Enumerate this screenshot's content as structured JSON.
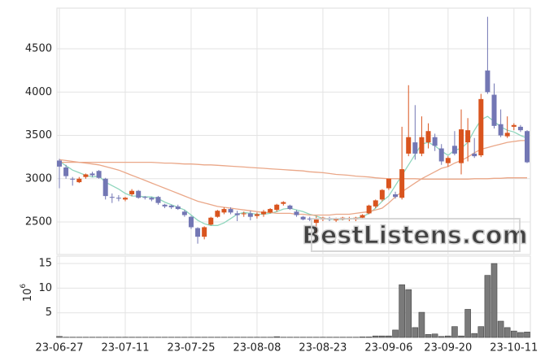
{
  "chart_data": [
    {
      "type": "candlestick",
      "open": [
        3210,
        3130,
        3000,
        2960,
        3020,
        3060,
        3090,
        3000,
        2790,
        2780,
        2760,
        2820,
        2860,
        2790,
        2780,
        2790,
        2700,
        2690,
        2680,
        2620,
        2560,
        2430,
        2330,
        2470,
        2560,
        2610,
        2650,
        2600,
        2590,
        2600,
        2570,
        2590,
        2610,
        2640,
        2710,
        2690,
        2620,
        2560,
        2540,
        2490,
        2530,
        2540,
        2520,
        2530,
        2540,
        2530,
        2550,
        2600,
        2680,
        2760,
        2890,
        2820,
        2780,
        3290,
        3420,
        3290,
        3420,
        3480,
        3350,
        3180,
        3380,
        3180,
        3420,
        3290,
        3270,
        4250,
        3970,
        3630,
        3490,
        3600,
        3600,
        3550
      ],
      "high": [
        3230,
        3160,
        3020,
        3020,
        3060,
        3080,
        3100,
        3010,
        2830,
        2810,
        2790,
        2880,
        2870,
        2800,
        2790,
        2800,
        2710,
        2700,
        2700,
        2640,
        2570,
        2440,
        2450,
        2560,
        2640,
        2670,
        2670,
        2630,
        2620,
        2630,
        2610,
        2640,
        2660,
        2710,
        2740,
        2700,
        2640,
        2570,
        2560,
        2570,
        2560,
        2560,
        2550,
        2560,
        2560,
        2560,
        2590,
        2700,
        2760,
        2880,
        3000,
        2850,
        3600,
        4080,
        3850,
        3720,
        3640,
        3520,
        3400,
        3260,
        3550,
        3800,
        3700,
        3470,
        3980,
        4870,
        4100,
        3800,
        3720,
        3640,
        3620,
        3560
      ],
      "low": [
        2890,
        3000,
        2920,
        2950,
        3000,
        3020,
        3000,
        2760,
        2720,
        2740,
        2740,
        2800,
        2770,
        2760,
        2740,
        2700,
        2660,
        2650,
        2640,
        2560,
        2420,
        2250,
        2300,
        2460,
        2550,
        2590,
        2590,
        2510,
        2560,
        2520,
        2540,
        2560,
        2600,
        2620,
        2690,
        2640,
        2560,
        2520,
        2510,
        2360,
        2510,
        2510,
        2500,
        2520,
        2510,
        2510,
        2540,
        2590,
        2660,
        2740,
        2870,
        2770,
        2760,
        3260,
        3220,
        3260,
        3350,
        3320,
        3160,
        3140,
        3270,
        3050,
        3200,
        3240,
        3250,
        3980,
        3580,
        3480,
        3470,
        3560,
        3540,
        3180
      ],
      "close": [
        3140,
        3030,
        2990,
        3000,
        3050,
        3040,
        3010,
        2800,
        2780,
        2770,
        2780,
        2860,
        2780,
        2780,
        2760,
        2720,
        2680,
        2670,
        2650,
        2580,
        2440,
        2330,
        2440,
        2550,
        2630,
        2650,
        2610,
        2580,
        2600,
        2560,
        2590,
        2620,
        2650,
        2700,
        2730,
        2650,
        2580,
        2530,
        2530,
        2530,
        2550,
        2530,
        2540,
        2550,
        2540,
        2550,
        2580,
        2690,
        2750,
        2870,
        3000,
        2790,
        3110,
        3480,
        3290,
        3480,
        3550,
        3380,
        3200,
        3240,
        3290,
        3570,
        3560,
        3260,
        3920,
        4000,
        3610,
        3500,
        3530,
        3620,
        3560,
        3190
      ],
      "up_color": "#d9541e",
      "down_color": "#7377b4",
      "lines": [
        {
          "color": "#8fd6bd",
          "values": [
            3200,
            3150,
            3100,
            3070,
            3040,
            3020,
            3030,
            2960,
            2920,
            2880,
            2830,
            2800,
            2800,
            2790,
            2790,
            2770,
            2730,
            2700,
            2670,
            2640,
            2580,
            2520,
            2480,
            2460,
            2460,
            2490,
            2540,
            2590,
            2610,
            2600,
            2590,
            2590,
            2600,
            2620,
            2650,
            2660,
            2640,
            2620,
            2590,
            2570,
            2540,
            2530,
            2530,
            2530,
            2540,
            2540,
            2560,
            2600,
            2660,
            2740,
            2800,
            2920,
            3040,
            3160,
            3280,
            3400,
            3420,
            3380,
            3320,
            3270,
            3330,
            3350,
            3420,
            3560,
            3680,
            3720,
            3660,
            3600,
            3560,
            3540,
            3500,
            3470
          ]
        },
        {
          "color": "#eaa788",
          "values": [
            3220,
            3210,
            3200,
            3190,
            3180,
            3170,
            3160,
            3140,
            3120,
            3100,
            3070,
            3040,
            3010,
            2980,
            2950,
            2920,
            2890,
            2860,
            2830,
            2800,
            2770,
            2740,
            2720,
            2700,
            2680,
            2670,
            2660,
            2650,
            2640,
            2630,
            2620,
            2610,
            2610,
            2600,
            2600,
            2600,
            2590,
            2590,
            2580,
            2580,
            2580,
            2580,
            2590,
            2590,
            2590,
            2600,
            2610,
            2620,
            2640,
            2660,
            2720,
            2790,
            2850,
            2900,
            2950,
            3000,
            3040,
            3080,
            3120,
            3140,
            3180,
            3210,
            3250,
            3300,
            3340,
            3360,
            3380,
            3400,
            3420,
            3430,
            3440,
            3440
          ]
        },
        {
          "color": "#eaa788",
          "values": [
            3190,
            3190,
            3190,
            3190,
            3190,
            3190,
            3190,
            3190,
            3190,
            3190,
            3190,
            3190,
            3190,
            3190,
            3190,
            3185,
            3180,
            3180,
            3175,
            3170,
            3170,
            3165,
            3160,
            3160,
            3155,
            3150,
            3145,
            3140,
            3135,
            3130,
            3125,
            3120,
            3115,
            3110,
            3105,
            3100,
            3095,
            3090,
            3080,
            3075,
            3070,
            3060,
            3050,
            3045,
            3040,
            3030,
            3025,
            3020,
            3010,
            3005,
            3000,
            3000,
            3000,
            3000,
            3000,
            2995,
            2995,
            2995,
            2995,
            2995,
            2995,
            2995,
            2995,
            3000,
            3000,
            3000,
            3005,
            3005,
            3010,
            3010,
            3010,
            3010
          ]
        }
      ],
      "ylim": [
        2125,
        4970
      ],
      "yticks": [
        2500,
        3000,
        3500,
        4000,
        4500
      ],
      "grid": true,
      "watermark": "BestListens.com"
    },
    {
      "type": "bar",
      "categories": [
        "23-06-27",
        null,
        null,
        null,
        null,
        null,
        null,
        null,
        null,
        null,
        "23-07-11",
        null,
        null,
        null,
        null,
        null,
        null,
        null,
        null,
        null,
        "23-07-25",
        null,
        null,
        null,
        null,
        null,
        null,
        null,
        null,
        null,
        "23-08-08",
        null,
        null,
        null,
        null,
        null,
        null,
        null,
        null,
        null,
        "23-08-23",
        null,
        null,
        null,
        null,
        null,
        null,
        null,
        null,
        null,
        "23-09-06",
        null,
        null,
        null,
        null,
        null,
        null,
        null,
        null,
        "23-09-20",
        null,
        null,
        null,
        null,
        null,
        null,
        null,
        null,
        null,
        "23-10-11",
        null,
        null
      ],
      "values": [
        0.2,
        0.05,
        0.05,
        0.05,
        0.05,
        0.05,
        0.05,
        0.05,
        0.05,
        0.05,
        0.05,
        0.05,
        0.05,
        0.05,
        0.05,
        0.05,
        0.05,
        0.05,
        0.05,
        0.05,
        0.05,
        0.05,
        0.05,
        0.05,
        0.05,
        0.05,
        0.05,
        0.05,
        0.05,
        0.05,
        0.05,
        0.05,
        0.05,
        0.15,
        0.05,
        0.05,
        0.05,
        0.05,
        0.05,
        0.05,
        0.05,
        0.05,
        0.05,
        0.05,
        0.05,
        0.05,
        0.1,
        0.1,
        0.3,
        0.3,
        0.3,
        1.5,
        10.7,
        9.7,
        2.0,
        5.1,
        0.6,
        0.7,
        0.2,
        0.3,
        2.2,
        0.3,
        5.7,
        0.8,
        2.2,
        12.6,
        15.0,
        3.3,
        2.0,
        1.3,
        1.0,
        1.1
      ],
      "color": "#7a7a7a",
      "ylim": [
        0,
        16.5
      ],
      "yticks": [
        5,
        10,
        15
      ],
      "grid": true,
      "y_unit_base": "10",
      "y_unit_exponent": "6"
    }
  ]
}
